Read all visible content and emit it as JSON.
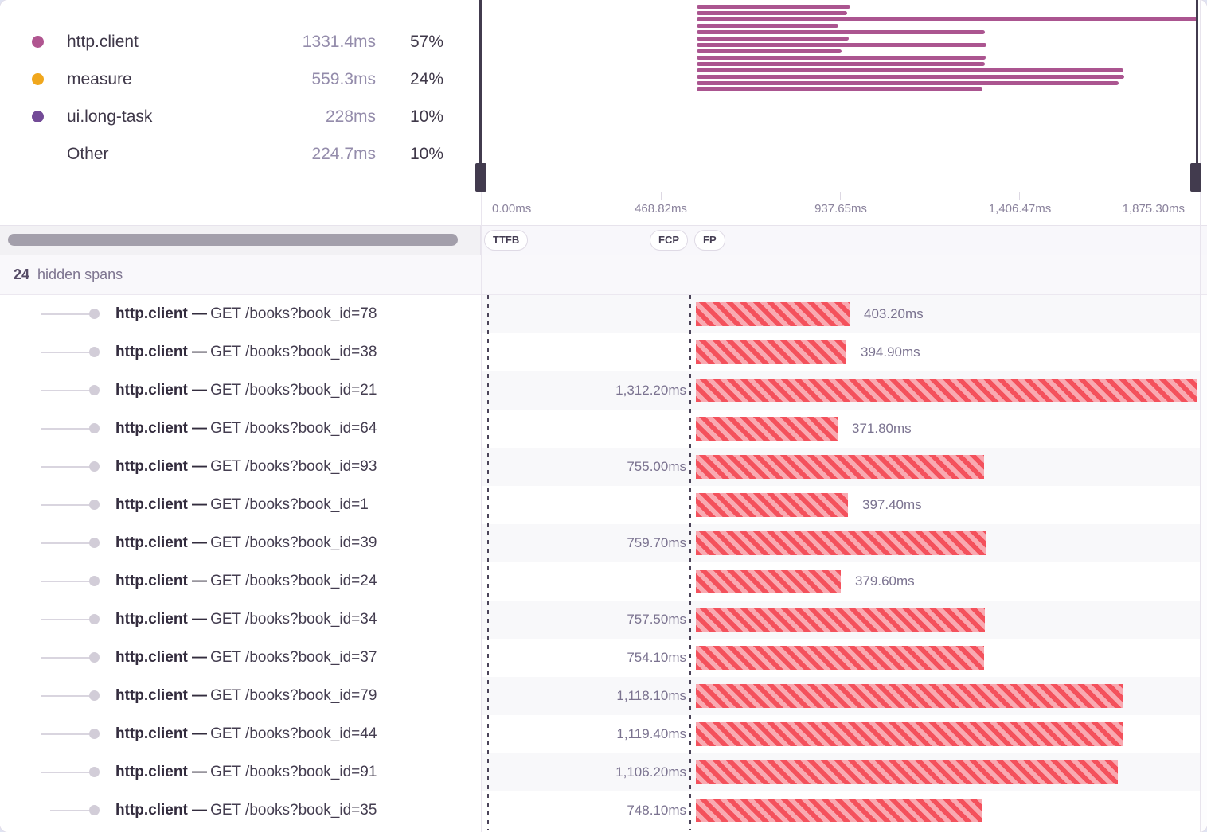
{
  "legend": {
    "items": [
      {
        "label": "http.client",
        "duration": "1331.4ms",
        "percent": "57%",
        "color": "#b05590"
      },
      {
        "label": "measure",
        "duration": "559.3ms",
        "percent": "24%",
        "color": "#f0a71d"
      },
      {
        "label": "ui.long-task",
        "duration": "228ms",
        "percent": "10%",
        "color": "#734b97"
      },
      {
        "label": "Other",
        "duration": "224.7ms",
        "percent": "10%",
        "color": null
      }
    ]
  },
  "minimap": {
    "bar_color": "#ab5590"
  },
  "axis": {
    "ticks": [
      "0.00ms",
      "468.82ms",
      "937.65ms",
      "1,406.47ms",
      "1,875.30ms"
    ],
    "total_ms": 1875.3
  },
  "measurements": [
    {
      "label": "TTFB"
    },
    {
      "label": "FCP"
    },
    {
      "label": "FP"
    }
  ],
  "hidden_spans": {
    "count": "24",
    "label": "hidden spans"
  },
  "colors": {
    "bar_stripe_red": "#f4515c",
    "bar_stripe_pink": "#f9a9b1",
    "guide_line": "#4a4358"
  },
  "spans": [
    {
      "op": "http.client",
      "separator": "—",
      "description": "GET /books?book_id=78",
      "duration_ms": 403.2,
      "duration_label": "403.20ms",
      "label_side": "right"
    },
    {
      "op": "http.client",
      "separator": "—",
      "description": "GET /books?book_id=38",
      "duration_ms": 394.9,
      "duration_label": "394.90ms",
      "label_side": "right"
    },
    {
      "op": "http.client",
      "separator": "—",
      "description": "GET /books?book_id=21",
      "duration_ms": 1312.2,
      "duration_label": "1,312.20ms",
      "label_side": "left"
    },
    {
      "op": "http.client",
      "separator": "—",
      "description": "GET /books?book_id=64",
      "duration_ms": 371.8,
      "duration_label": "371.80ms",
      "label_side": "right"
    },
    {
      "op": "http.client",
      "separator": "—",
      "description": "GET /books?book_id=93",
      "duration_ms": 755.0,
      "duration_label": "755.00ms",
      "label_side": "left"
    },
    {
      "op": "http.client",
      "separator": "—",
      "description": "GET /books?book_id=1",
      "duration_ms": 397.4,
      "duration_label": "397.40ms",
      "label_side": "right"
    },
    {
      "op": "http.client",
      "separator": "—",
      "description": "GET /books?book_id=39",
      "duration_ms": 759.7,
      "duration_label": "759.70ms",
      "label_side": "left"
    },
    {
      "op": "http.client",
      "separator": "—",
      "description": "GET /books?book_id=24",
      "duration_ms": 379.6,
      "duration_label": "379.60ms",
      "label_side": "right"
    },
    {
      "op": "http.client",
      "separator": "—",
      "description": "GET /books?book_id=34",
      "duration_ms": 757.5,
      "duration_label": "757.50ms",
      "label_side": "left"
    },
    {
      "op": "http.client",
      "separator": "—",
      "description": "GET /books?book_id=37",
      "duration_ms": 754.1,
      "duration_label": "754.10ms",
      "label_side": "left"
    },
    {
      "op": "http.client",
      "separator": "—",
      "description": "GET /books?book_id=79",
      "duration_ms": 1118.1,
      "duration_label": "1,118.10ms",
      "label_side": "left"
    },
    {
      "op": "http.client",
      "separator": "—",
      "description": "GET /books?book_id=44",
      "duration_ms": 1119.4,
      "duration_label": "1,119.40ms",
      "label_side": "left"
    },
    {
      "op": "http.client",
      "separator": "—",
      "description": "GET /books?book_id=91",
      "duration_ms": 1106.2,
      "duration_label": "1,106.20ms",
      "label_side": "left"
    },
    {
      "op": "http.client",
      "separator": "—",
      "description": "GET /books?book_id=35",
      "duration_ms": 748.1,
      "duration_label": "748.10ms",
      "label_side": "left"
    }
  ]
}
